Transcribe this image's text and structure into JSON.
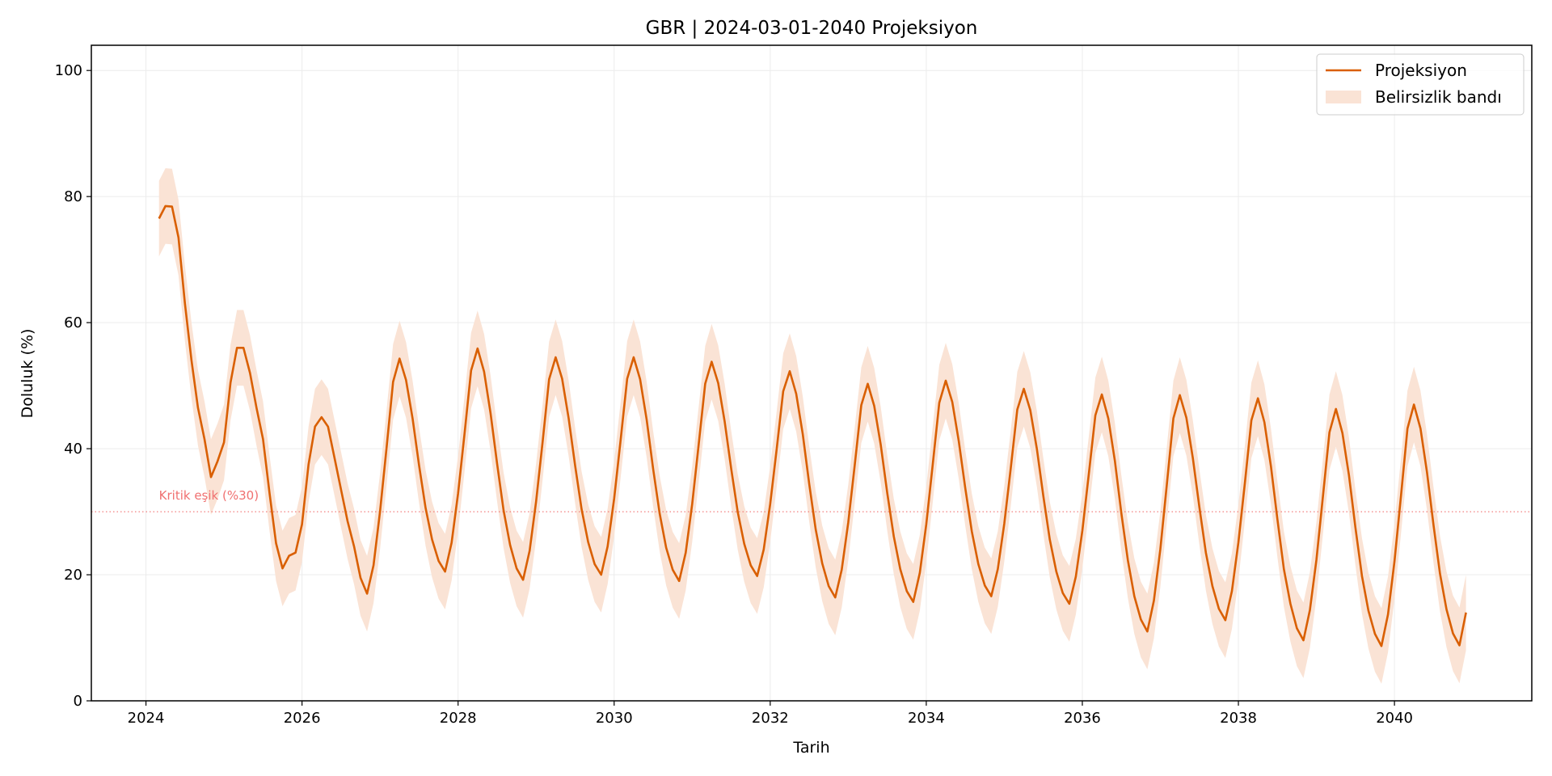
{
  "chart_data": {
    "type": "line",
    "title": "GBR | 2024-03-01-2040 Projeksiyon",
    "xlabel": "Tarih",
    "ylabel": "Doluluk (%)",
    "xlim": [
      2023.3,
      2041.76
    ],
    "ylim": [
      0,
      104
    ],
    "x_ticks": [
      "2024",
      "2026",
      "2028",
      "2030",
      "2032",
      "2034",
      "2036",
      "2038",
      "2040"
    ],
    "y_ticks": [
      "0",
      "20",
      "40",
      "60",
      "80",
      "100"
    ],
    "grid": true,
    "legend": {
      "placement": "top-right",
      "entries": [
        "Projeksiyon",
        "Belirsizlik bandı"
      ]
    },
    "colors": {
      "line": "#d95f02",
      "band": "#fae3d5",
      "threshold": "#f07070",
      "grid": "#ececec"
    },
    "threshold": {
      "value": 30,
      "label": "Kritik eşik (%30)",
      "style": "dotted"
    },
    "band_plus_minus": 6,
    "frequency": "monthly",
    "series": [
      {
        "name": "Projeksiyon",
        "by_year": [
          {
            "year": 2024,
            "from_month": 3,
            "values": [
              76.5,
              78.5,
              78.4,
              73.5,
              63,
              54,
              46.5,
              41.5,
              35.5,
              38
            ]
          },
          {
            "year": 2025,
            "from_month": 1,
            "values": [
              41,
              50.5,
              56,
              56,
              52,
              46.5,
              41.5,
              33,
              25,
              21,
              23,
              23.5
            ]
          },
          {
            "year": 2026,
            "from_month": 1,
            "values": [
              28,
              37.5,
              43.5,
              45,
              43.5,
              38.5,
              33.5,
              28.5,
              24.5,
              19.5,
              17,
              21.5
            ]
          },
          {
            "year": 2027,
            "from_month": 1,
            "values": [
              30.1,
              40.1,
              50.6,
              54.3,
              50.9,
              44.8,
              37.4,
              30.6,
              25.6,
              22.2,
              20.5,
              25.1
            ]
          },
          {
            "year": 2028,
            "from_month": 1,
            "values": [
              32.9,
              42.4,
              52.4,
              55.9,
              52.2,
              45.6,
              37.6,
              30.2,
              24.7,
              21.0,
              19.2,
              23.8
            ]
          },
          {
            "year": 2029,
            "from_month": 1,
            "values": [
              31.6,
              41.1,
              51.0,
              54.5,
              51.1,
              44.8,
              37.3,
              30.4,
              25.2,
              21.7,
              20.0,
              24.5
            ]
          },
          {
            "year": 2030,
            "from_month": 1,
            "values": [
              32.1,
              41.4,
              51.1,
              54.5,
              51.0,
              44.6,
              36.8,
              29.7,
              24.3,
              20.8,
              19.0,
              23.5
            ]
          },
          {
            "year": 2031,
            "from_month": 1,
            "values": [
              31.2,
              40.6,
              50.3,
              53.8,
              50.4,
              44.3,
              36.8,
              30.0,
              24.9,
              21.5,
              19.8,
              24.0
            ]
          },
          {
            "year": 2032,
            "from_month": 1,
            "values": [
              31.2,
              40.0,
              49.1,
              52.3,
              48.7,
              42.3,
              34.4,
              27.2,
              21.8,
              18.2,
              16.4,
              20.8
            ]
          },
          {
            "year": 2033,
            "from_month": 1,
            "values": [
              28.3,
              37.4,
              46.9,
              50.3,
              46.8,
              40.6,
              33.0,
              26.1,
              20.9,
              17.4,
              15.7,
              20.3
            ]
          },
          {
            "year": 2034,
            "from_month": 1,
            "values": [
              28.0,
              37.5,
              47.3,
              50.8,
              47.4,
              41.2,
              33.7,
              26.9,
              21.7,
              18.3,
              16.6,
              20.9
            ]
          },
          {
            "year": 2035,
            "from_month": 1,
            "values": [
              28.1,
              37.0,
              46.2,
              49.5,
              46.1,
              40.0,
              32.5,
              25.6,
              20.5,
              17.1,
              15.4,
              19.7
            ]
          },
          {
            "year": 2036,
            "from_month": 1,
            "values": [
              27.0,
              36.0,
              45.3,
              48.6,
              44.8,
              38.1,
              29.8,
              22.3,
              16.6,
              12.9,
              11.0,
              15.9
            ]
          },
          {
            "year": 2037,
            "from_month": 1,
            "values": [
              24.1,
              34.3,
              44.8,
              48.5,
              44.9,
              38.5,
              30.7,
              23.5,
              18.2,
              14.6,
              12.8,
              17.4
            ]
          },
          {
            "year": 2038,
            "from_month": 1,
            "values": [
              25.1,
              34.6,
              44.5,
              48.0,
              44.2,
              37.2,
              28.8,
              20.9,
              15.4,
              11.5,
              9.6,
              14.4
            ]
          },
          {
            "year": 2039,
            "from_month": 1,
            "values": [
              22.4,
              32.4,
              42.6,
              46.3,
              42.5,
              35.8,
              27.5,
              19.8,
              14.3,
              10.6,
              8.7,
              13.7
            ]
          },
          {
            "year": 2040,
            "from_month": 1,
            "values": [
              22.1,
              32.4,
              43.2,
              47.0,
              43.2,
              36.3,
              27.9,
              20.2,
              14.5,
              10.7,
              8.8,
              14.0
            ]
          }
        ]
      }
    ]
  }
}
